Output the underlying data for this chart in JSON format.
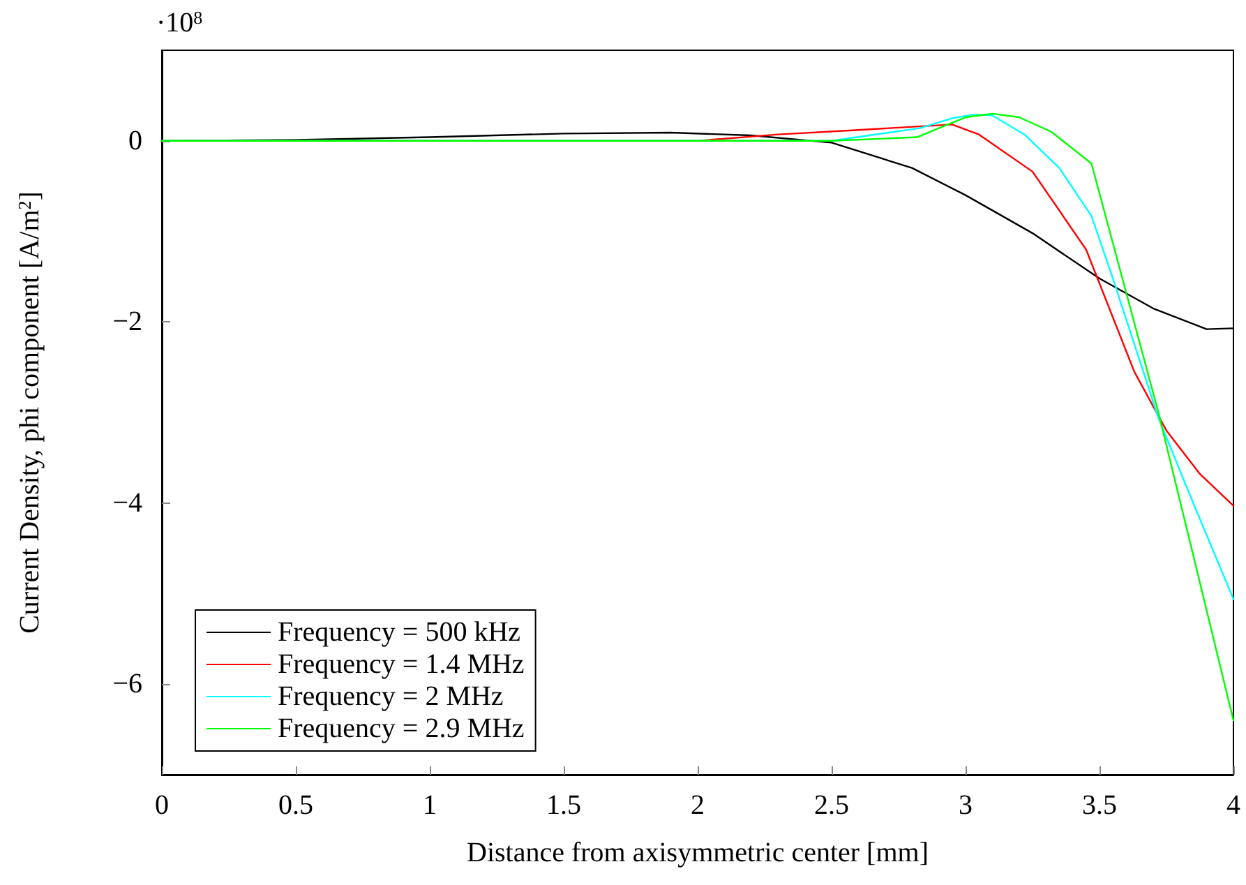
{
  "chart_data": {
    "type": "line",
    "xlabel": "Distance from axisymmetric center [mm]",
    "ylabel": "Current Density, phi component [A/m$^{2}$]",
    "annotations": [
      "·10$^{8}$"
    ],
    "xlim": [
      0,
      4
    ],
    "xticks": [
      0,
      0.5,
      1,
      1.5,
      2,
      2.5,
      3,
      3.5,
      4
    ],
    "ylim": [
      -7,
      1
    ],
    "yticks": [
      {
        "value": -6,
        "label": "−6"
      },
      {
        "value": -4,
        "label": "−4"
      },
      {
        "value": -2,
        "label": "−2"
      },
      0
    ],
    "grid": false,
    "legend": "bottom left",
    "marker": "none",
    "line_style": "solid",
    "series": [
      {
        "name": "Frequency = 500 kHz",
        "color": "#000000",
        "x": [
          0,
          0.5,
          1,
          1.5,
          1.9,
          2.2,
          2.5,
          2.8,
          3.0,
          3.25,
          3.5,
          3.7,
          3.9,
          4
        ],
        "values": [
          0,
          0.01,
          0.04,
          0.08,
          0.09,
          0.06,
          -0.02,
          -0.3,
          -0.6,
          -1.02,
          -1.52,
          -1.85,
          -2.08,
          -2.07
        ]
      },
      {
        "name": "Frequency = 1.4 MHz",
        "color": "#ff0000",
        "x": [
          0,
          2,
          2.3,
          2.6,
          2.95,
          3.05,
          3.25,
          3.45,
          3.55,
          3.63,
          3.75,
          3.875,
          4
        ],
        "values": [
          0,
          0,
          0.07,
          0.12,
          0.18,
          0.07,
          -0.34,
          -1.2,
          -1.95,
          -2.55,
          -3.2,
          -3.68,
          -4.03
        ]
      },
      {
        "name": "Frequency = 2 MHz",
        "color": "#00ffff",
        "x": [
          0,
          2.5,
          2.83,
          2.95,
          3.03,
          3.1,
          3.22,
          3.35,
          3.47,
          3.55,
          3.72,
          3.85,
          4
        ],
        "values": [
          0,
          0,
          0.14,
          0.25,
          0.29,
          0.28,
          0.07,
          -0.3,
          -0.83,
          -1.52,
          -3.06,
          -4.0,
          -5.06
        ]
      },
      {
        "name": "Frequency = 2.9 MHz",
        "color": "#00ff00",
        "x": [
          0,
          2.5,
          2.82,
          2.9,
          3.0,
          3.1,
          3.2,
          3.32,
          3.47,
          3.72,
          4
        ],
        "values": [
          0,
          0,
          0.04,
          0.14,
          0.26,
          0.3,
          0.26,
          0.1,
          -0.25,
          -3.0,
          -6.4
        ]
      }
    ]
  }
}
